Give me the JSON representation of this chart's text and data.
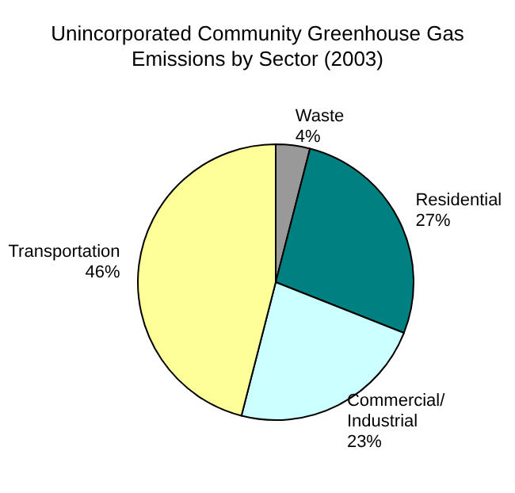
{
  "chart_data": {
    "type": "pie",
    "title": "Unincorporated Community Greenhouse Gas\nEmissions by Sector (2003)",
    "categories": [
      "Waste",
      "Residential",
      "Commercial/\nIndustrial",
      "Transportation"
    ],
    "values": [
      4,
      27,
      23,
      46
    ],
    "value_labels": [
      "4%",
      "27%",
      "23%",
      "46%"
    ],
    "colors": [
      "#999999",
      "#008080",
      "#ccffff",
      "#ffff99"
    ],
    "legend": false
  }
}
